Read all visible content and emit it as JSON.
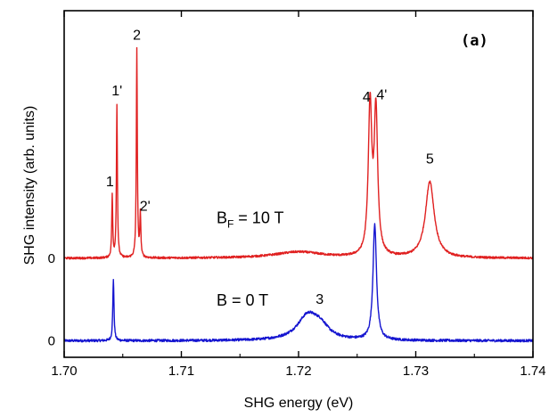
{
  "chart_data": {
    "type": "line",
    "panel_label": "(a)",
    "xlabel": "SHG energy (eV)",
    "ylabel": "SHG intensity (arb. units)",
    "xlim": [
      1.7,
      1.74
    ],
    "ylim": [
      -0.08,
      1.6
    ],
    "x_ticks": [
      {
        "value": 1.7,
        "label": "1.70"
      },
      {
        "value": 1.71,
        "label": "1.71"
      },
      {
        "value": 1.72,
        "label": "1.72"
      },
      {
        "value": 1.73,
        "label": "1.73"
      },
      {
        "value": 1.74,
        "label": "1.74"
      }
    ],
    "y_baselines": [
      {
        "value": 0.0,
        "label": "0"
      },
      {
        "value": 0.4,
        "label": "0"
      }
    ],
    "series": [
      {
        "name": "B = 0 T",
        "label_parts": {
          "main": "B = 0 T",
          "sub": ""
        },
        "color": "#1515d0",
        "baseline": 0.0,
        "noise": 0.006,
        "peaks": [
          {
            "x": 1.7042,
            "amp": 0.3,
            "width": 6e-05
          },
          {
            "x": 1.7208,
            "amp": 0.12,
            "width": 0.0011
          },
          {
            "x": 1.7219,
            "amp": 0.05,
            "width": 0.0008
          },
          {
            "x": 1.7265,
            "amp": 0.56,
            "width": 0.00018
          }
        ]
      },
      {
        "name": "B_F = 10 T",
        "label_parts": {
          "main": "B",
          "sub": "F",
          "rest": " = 10 T"
        },
        "color": "#e02020",
        "baseline": 0.4,
        "noise": 0.005,
        "peaks": [
          {
            "x": 1.7041,
            "amp": 0.3,
            "width": 5e-05
          },
          {
            "x": 1.7045,
            "amp": 0.74,
            "width": 5e-05
          },
          {
            "x": 1.7062,
            "amp": 1.01,
            "width": 5e-05
          },
          {
            "x": 1.7065,
            "amp": 0.21,
            "width": 5e-05
          },
          {
            "x": 1.72,
            "amp": 0.03,
            "width": 0.0025
          },
          {
            "x": 1.7261,
            "amp": 0.72,
            "width": 0.00018
          },
          {
            "x": 1.7266,
            "amp": 0.69,
            "width": 0.00018
          },
          {
            "x": 1.7312,
            "amp": 0.37,
            "width": 0.00045
          }
        ]
      }
    ],
    "peak_annotations": [
      {
        "label": "1",
        "x": 1.7039,
        "y": 0.75
      },
      {
        "label": "1'",
        "x": 1.7045,
        "y": 1.19
      },
      {
        "label": "2",
        "x": 1.7062,
        "y": 1.46
      },
      {
        "label": "2'",
        "x": 1.7069,
        "y": 0.63
      },
      {
        "label": "3",
        "x": 1.7218,
        "y": 0.18
      },
      {
        "label": "4",
        "x": 1.7258,
        "y": 1.16
      },
      {
        "label": "4'",
        "x": 1.7271,
        "y": 1.17
      },
      {
        "label": "5",
        "x": 1.7312,
        "y": 0.86
      }
    ],
    "curve_annotations": [
      {
        "series": 1,
        "x": 1.713,
        "y": 0.57
      },
      {
        "series": 0,
        "x": 1.713,
        "y": 0.17
      }
    ]
  }
}
